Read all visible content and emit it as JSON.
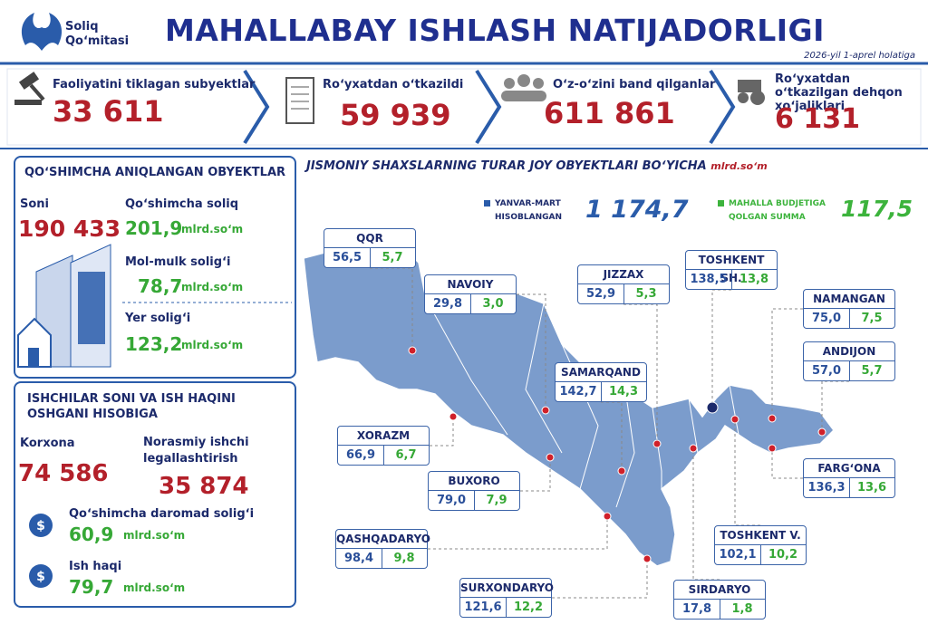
{
  "header": {
    "logo_line1": "Soliq",
    "logo_line2": "Qoʻmitasi",
    "title": "MAHALLABAY ISHLASH NATIJADORLIGI",
    "date": "2026-yil 1-aprel holatiga"
  },
  "kpis": [
    {
      "label": "Faoliyatini tiklagan subyektlar",
      "value": "33 611"
    },
    {
      "label": "Roʻyxatdan oʻtkazildi",
      "value": "59 939"
    },
    {
      "label": "Oʻz-oʻzini band qilganlar",
      "value": "611 861"
    },
    {
      "label": "Roʻyxatdan oʻtkazilgan dehqon xoʻjaliklari",
      "value": "6 131"
    }
  ],
  "objects_panel": {
    "title": "QOʻSHIMCHA ANIQLANGAN OBYEKTLAR",
    "count_label": "Soni",
    "count_value": "190 433",
    "items": [
      {
        "label": "Qoʻshimcha soliq",
        "value": "201,9",
        "unit": "mlrd.soʻm"
      },
      {
        "label": "Mol-mulk soligʻi",
        "value": "78,7",
        "unit": "mlrd.soʻm"
      },
      {
        "label": "Yer soligʻi",
        "value": "123,2",
        "unit": "mlrd.soʻm"
      }
    ]
  },
  "workers_panel": {
    "title": "ISHCHILAR SONI VA ISH HAQINI OSHGANI HISOBIGA",
    "enterprise_label": "Korxona",
    "enterprise_value": "74 586",
    "informal_label": "Norasmiy ishchi legallashtirish",
    "informal_value": "35 874",
    "items": [
      {
        "label": "Qoʻshimcha daromad soligʻi",
        "value": "60,9",
        "unit": "mlrd.soʻm"
      },
      {
        "label": "Ish haqi",
        "value": "79,7",
        "unit": "mlrd.soʻm"
      }
    ]
  },
  "map": {
    "title": "JISMONIY SHAXSLARNING TURAR JOY OBYEKTLARI BOʻYICHA",
    "unit": "mlrd.soʻm",
    "legend": [
      {
        "label": "YANVAR-MART HISOBLANGAN",
        "value": "1 174,7",
        "color": "#2a5caa"
      },
      {
        "label": "MAHALLA BUDJETIGA QOLGAN SUMMA",
        "value": "117,5",
        "color": "#3cb33c"
      }
    ],
    "regions": [
      {
        "name": "QQR",
        "accrued": "56,5",
        "remaining": "5,7"
      },
      {
        "name": "NAVOIY",
        "accrued": "29,8",
        "remaining": "3,0"
      },
      {
        "name": "JIZZAX",
        "accrued": "52,9",
        "remaining": "5,3"
      },
      {
        "name": "TOSHKENT SH.",
        "accrued": "138,5",
        "remaining": "13,8"
      },
      {
        "name": "NAMANGAN",
        "accrued": "75,0",
        "remaining": "7,5"
      },
      {
        "name": "ANDIJON",
        "accrued": "57,0",
        "remaining": "5,7"
      },
      {
        "name": "SAMARQAND",
        "accrued": "142,7",
        "remaining": "14,3"
      },
      {
        "name": "XORAZM",
        "accrued": "66,9",
        "remaining": "6,7"
      },
      {
        "name": "BUXORO",
        "accrued": "79,0",
        "remaining": "7,9"
      },
      {
        "name": "FARGʻONA",
        "accrued": "136,3",
        "remaining": "13,6"
      },
      {
        "name": "QASHQADARYO",
        "accrued": "98,4",
        "remaining": "9,8"
      },
      {
        "name": "TOSHKENT V.",
        "accrued": "102,1",
        "remaining": "10,2"
      },
      {
        "name": "SURXONDARYO",
        "accrued": "121,6",
        "remaining": "12,2"
      },
      {
        "name": "SIRDARYO",
        "accrued": "17,8",
        "remaining": "1,8"
      }
    ]
  }
}
